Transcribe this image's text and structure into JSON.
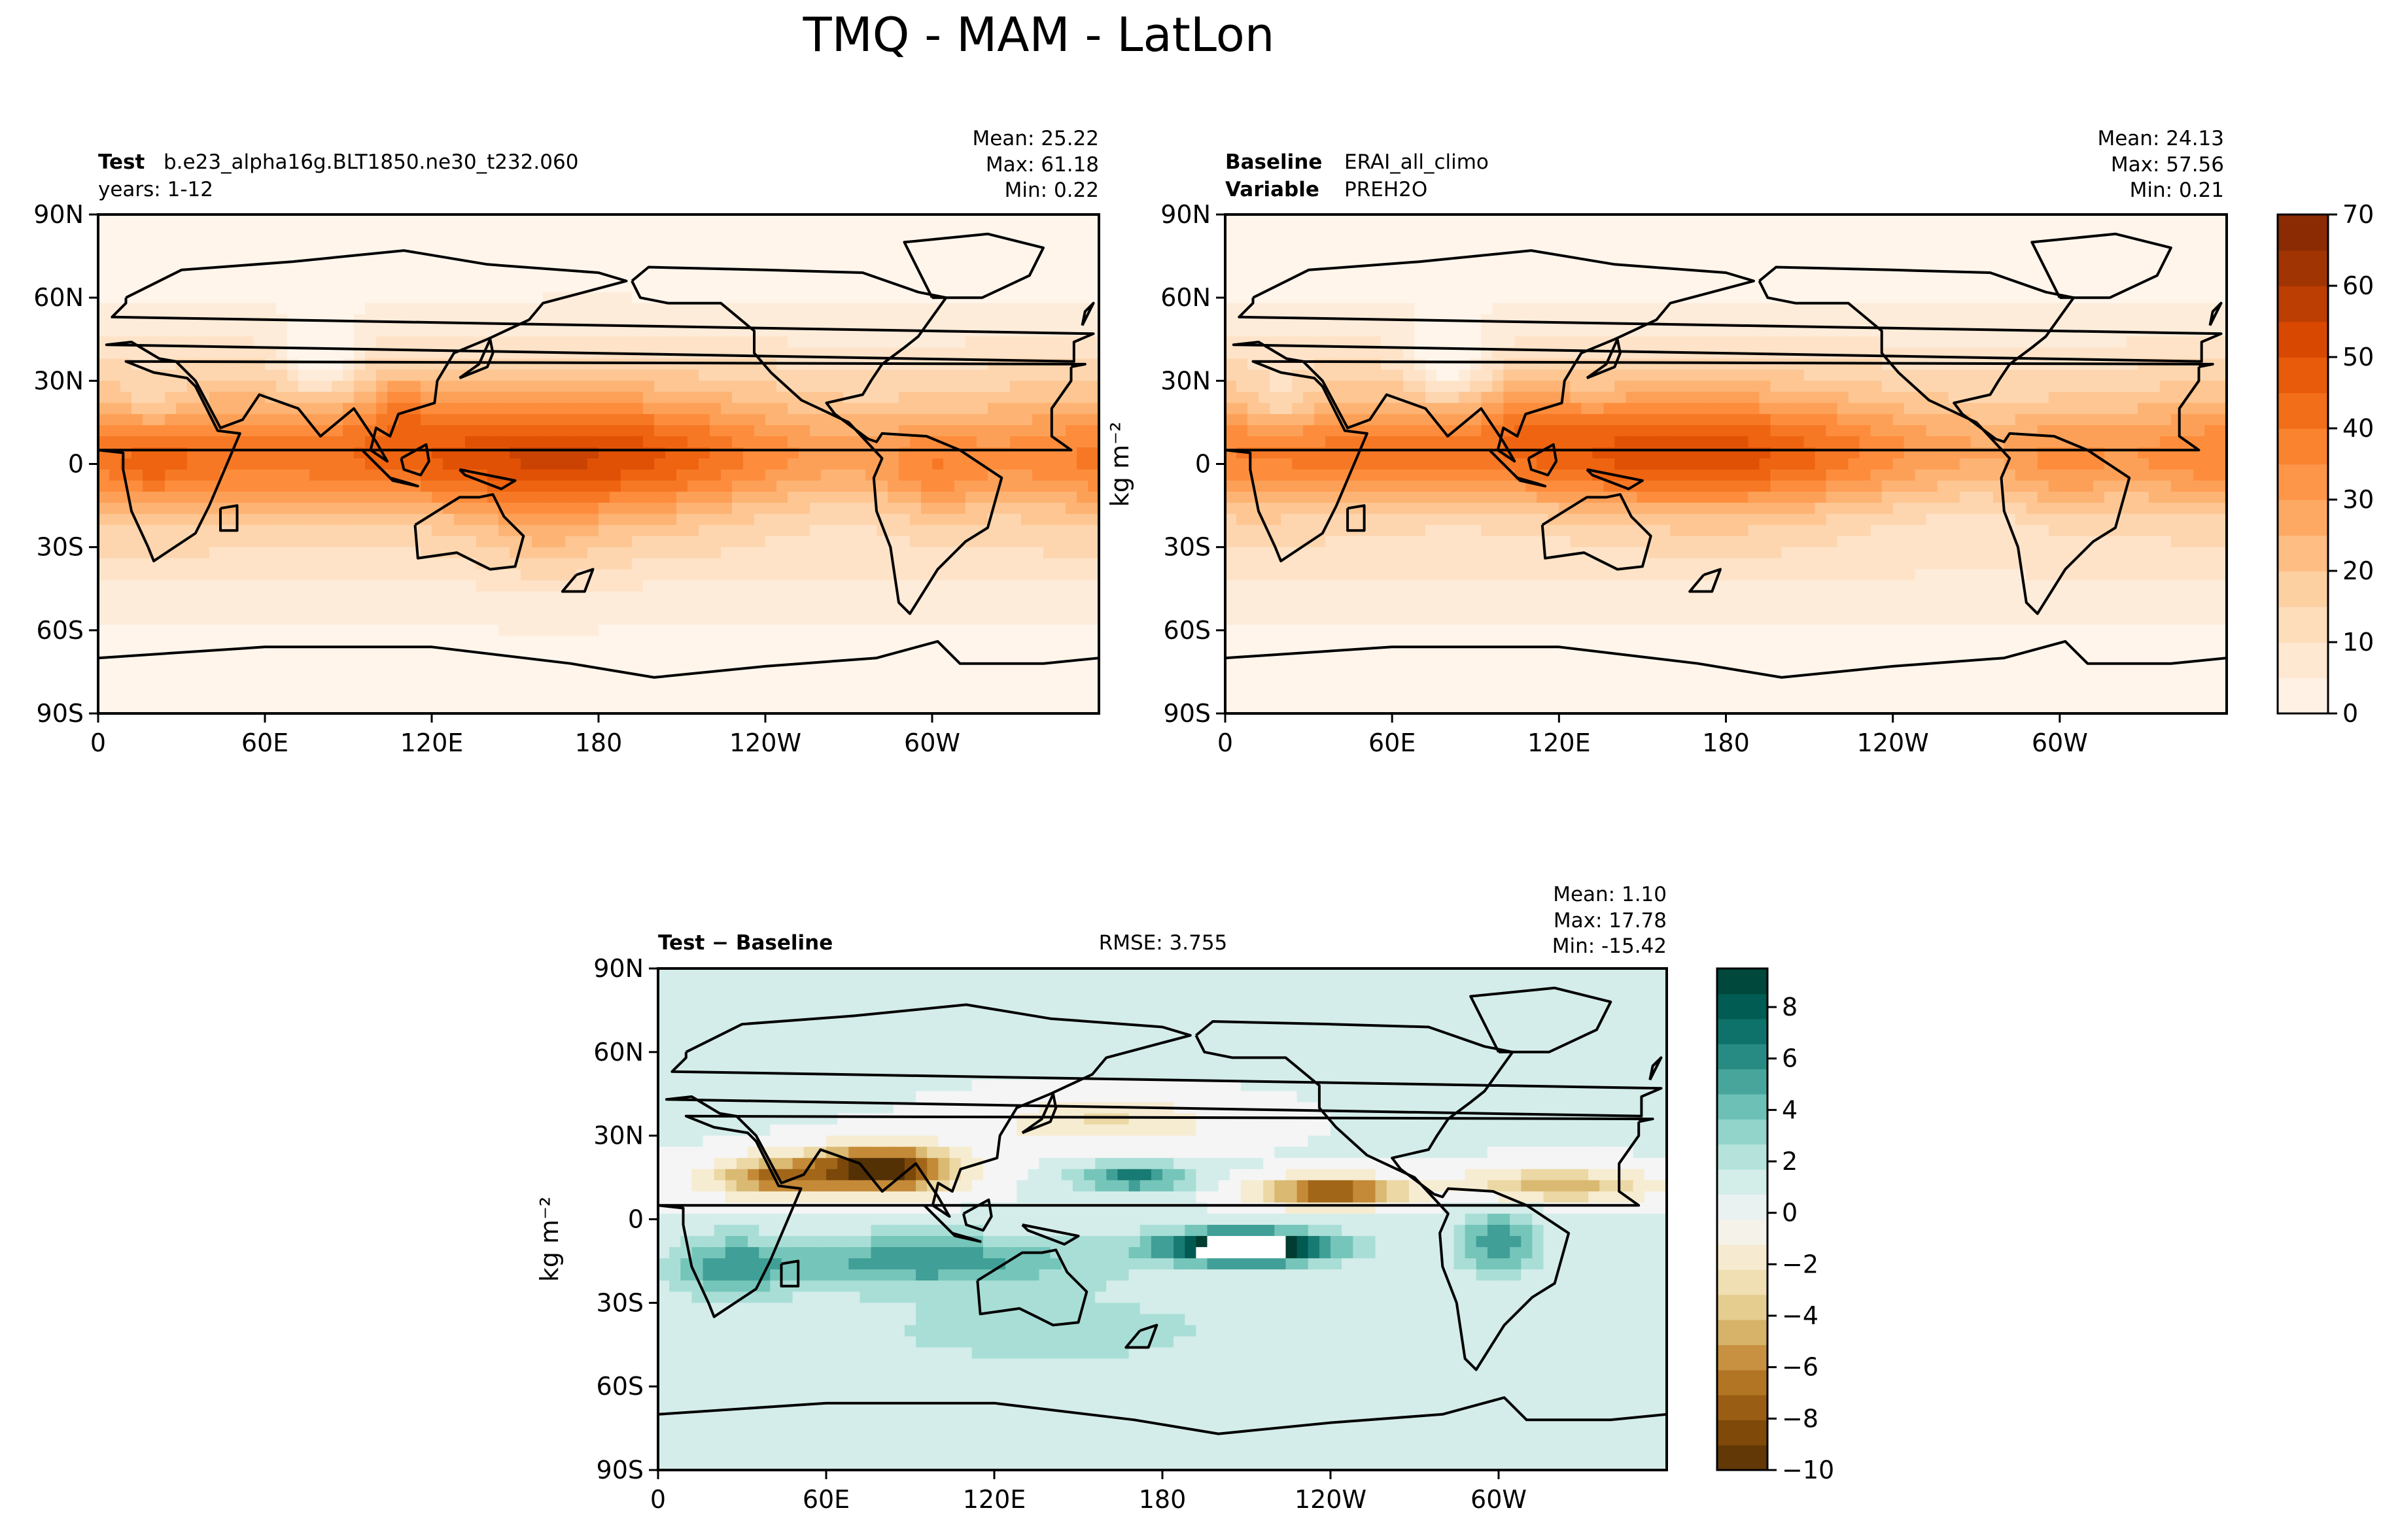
{
  "title": "TMQ - MAM - LatLon",
  "colors": {
    "seq_scale": [
      "#fff5eb",
      "#fee6ce",
      "#fdd0a2",
      "#fdae6b",
      "#fd8d3c",
      "#f16913",
      "#d94801",
      "#a63603",
      "#7f2704"
    ],
    "div_scale": [
      "#543005",
      "#8c510a",
      "#bf812d",
      "#dfc27d",
      "#f6e8c3",
      "#f5f5f5",
      "#c7eae5",
      "#80cdc1",
      "#35978f",
      "#01665e",
      "#003c30"
    ],
    "land": "#000000"
  },
  "chart_data": [
    {
      "type": "heatmap",
      "panel": "test",
      "label_bold": "Test",
      "label_text": "b.e23_alpha16g.BLT1850.ne30_t232.060",
      "sub_label": "years: 1-12",
      "stats": {
        "mean": "Mean: 25.22",
        "max": "Max: 61.18",
        "min": "Min:  0.22"
      },
      "x_ticks": [
        "0",
        "60E",
        "120E",
        "180",
        "120W",
        "60W"
      ],
      "y_ticks": [
        "90N",
        "60N",
        "30N",
        "0",
        "30S",
        "60S",
        "90S"
      ],
      "field": {
        "base": 2,
        "eq_peak": 48,
        "peak_lon": 135,
        "lon_amp": 5,
        "itcz_lat": 3,
        "width": 24,
        "blobs": [
          {
            "lon": 300,
            "lat": -5,
            "amp": 10,
            "r": 18
          },
          {
            "lon": 20,
            "lat": 0,
            "amp": 6,
            "r": 14
          },
          {
            "lon": 110,
            "lat": 22,
            "amp": 10,
            "r": 12
          },
          {
            "lon": 80,
            "lat": 38,
            "amp": -18,
            "r": 12
          },
          {
            "lon": 20,
            "lat": 22,
            "amp": -8,
            "r": 12
          },
          {
            "lon": 160,
            "lat": -25,
            "amp": 6,
            "r": 20
          }
        ]
      }
    },
    {
      "type": "heatmap",
      "panel": "baseline",
      "label_bold": "Baseline",
      "label_text": "ERAI_all_climo",
      "var_bold": "Variable",
      "var_text": "PREH2O",
      "stats": {
        "mean": "Mean: 24.13",
        "max": "Max: 57.56",
        "min": "Min:  0.21"
      },
      "x_ticks": [
        "0",
        "60E",
        "120E",
        "180",
        "120W",
        "60W"
      ],
      "y_ticks": [
        "90N",
        "60N",
        "30N",
        "0",
        "30S",
        "60S",
        "90S"
      ],
      "field": {
        "base": 2,
        "eq_peak": 46,
        "peak_lon": 135,
        "lon_amp": 5,
        "itcz_lat": 4,
        "width": 23,
        "blobs": [
          {
            "lon": 300,
            "lat": -5,
            "amp": 8,
            "r": 18
          },
          {
            "lon": 110,
            "lat": 20,
            "amp": 8,
            "r": 12
          },
          {
            "lon": 80,
            "lat": 36,
            "amp": -18,
            "r": 12
          },
          {
            "lon": 20,
            "lat": 22,
            "amp": -10,
            "r": 12
          }
        ]
      },
      "colorbar": {
        "ticks": [
          "0",
          "10",
          "20",
          "30",
          "40",
          "50",
          "60",
          "70"
        ],
        "vmin": 0,
        "vmax": 70,
        "label": "kg m⁻²"
      }
    },
    {
      "type": "heatmap",
      "panel": "diff",
      "label_bold": "Test − Baseline",
      "rmse": "RMSE: 3.755",
      "stats": {
        "mean": "Mean:  1.10",
        "max": "Max: 17.78",
        "min": "Min: -15.42"
      },
      "x_ticks": [
        "0",
        "60E",
        "120E",
        "180",
        "120W",
        "60W"
      ],
      "y_ticks": [
        "90N",
        "60N",
        "30N",
        "0",
        "30S",
        "60S",
        "90S"
      ],
      "field": {
        "features": [
          {
            "lon": 80,
            "lat": 18,
            "amp": -12,
            "rlon": 25,
            "rlat": 8
          },
          {
            "lon": 40,
            "lat": 15,
            "amp": -7,
            "rlon": 20,
            "rlat": 7
          },
          {
            "lon": 240,
            "lat": 10,
            "amp": -9,
            "rlon": 25,
            "rlat": 5
          },
          {
            "lon": 320,
            "lat": 12,
            "amp": -5,
            "rlon": 35,
            "rlat": 6
          },
          {
            "lon": 210,
            "lat": -10,
            "amp": 13,
            "rlon": 30,
            "rlat": 6
          },
          {
            "lon": 300,
            "lat": -8,
            "amp": 5,
            "rlon": 15,
            "rlat": 12
          },
          {
            "lon": 170,
            "lat": 15,
            "amp": 6,
            "rlon": 20,
            "rlat": 5
          },
          {
            "lon": 95,
            "lat": -15,
            "amp": 5,
            "rlon": 60,
            "rlat": 10
          },
          {
            "lon": 25,
            "lat": -18,
            "amp": 4,
            "rlon": 20,
            "rlat": 12
          },
          {
            "lon": 160,
            "lat": 35,
            "amp": -3,
            "rlon": 40,
            "rlat": 8
          },
          {
            "lon": 140,
            "lat": -40,
            "amp": 2,
            "rlon": 80,
            "rlat": 15
          }
        ]
      },
      "colorbar": {
        "ticks": [
          "8",
          "6",
          "4",
          "2",
          "0",
          "−2",
          "−4",
          "−6",
          "−8",
          "−10"
        ],
        "vmin": -10,
        "vmax": 9.5,
        "label": "kg m⁻²"
      }
    }
  ]
}
